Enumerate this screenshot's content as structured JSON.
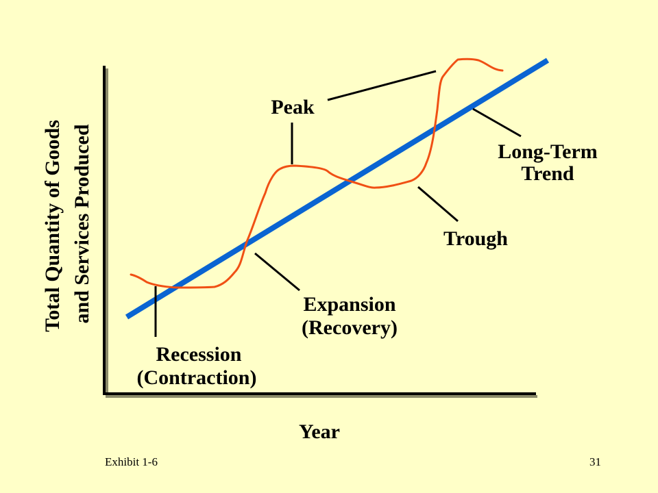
{
  "slide": {
    "y_axis_label_line1": "Total Quantity of Goods",
    "y_axis_label_line2": "and Services Produced",
    "x_axis_label": "Year",
    "footer_left": "Exhibit 1-6",
    "footer_right": "31"
  },
  "labels": {
    "peak": "Peak",
    "trough": "Trough",
    "trend_line1": "Long-Term",
    "trend_line2": "Trend",
    "expansion_line1": "Expansion",
    "expansion_line2": "(Recovery)",
    "recession_line1": "Recession",
    "recession_line2": "(Contraction)"
  },
  "colors": {
    "background": "#ffffc8",
    "axis": "#000000",
    "trend_line": "#0a64d2",
    "business_cycle_curve": "#f05014",
    "pointer_lines": "#000000"
  }
}
